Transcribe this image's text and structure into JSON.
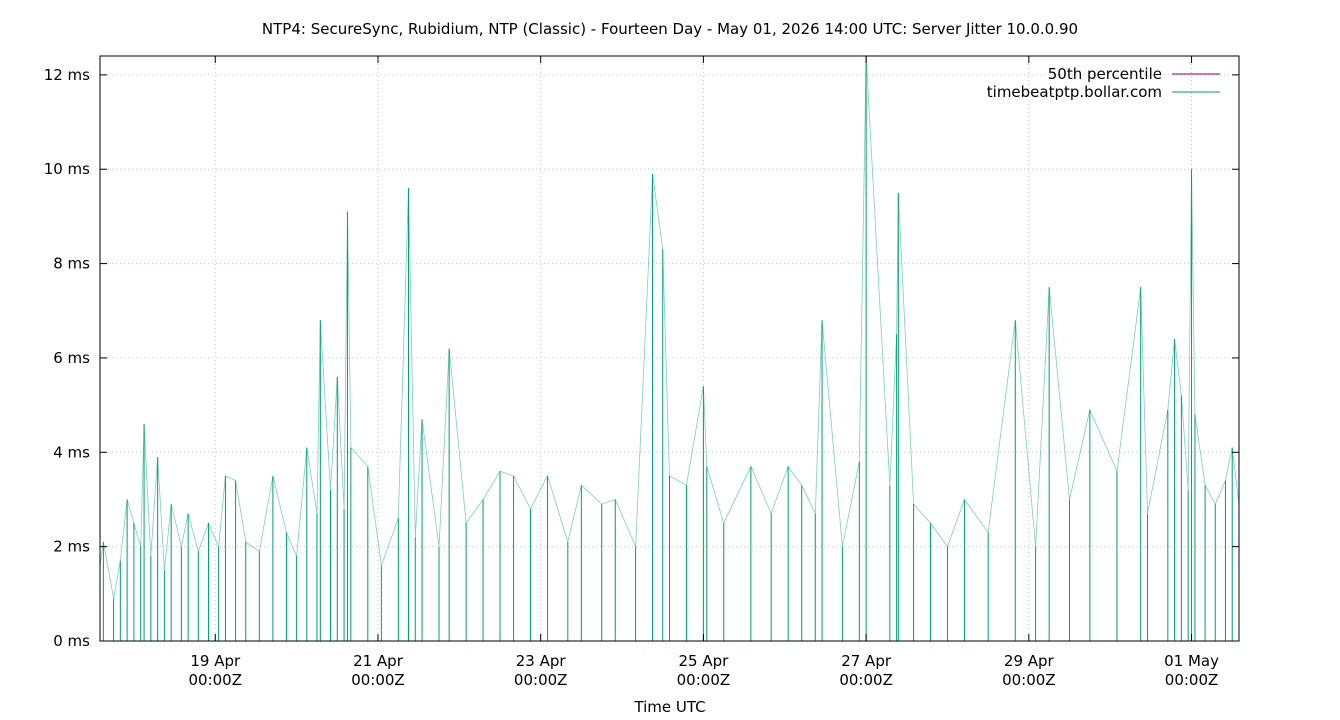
{
  "chart_data": {
    "type": "line",
    "title": "NTP4: SecureSync, Rubidium, NTP (Classic) - Fourteen Day - May 01, 2026 14:00 UTC: Server Jitter 10.0.0.90",
    "xlabel": "Time UTC",
    "ylabel": "",
    "ylim": [
      0,
      12.4
    ],
    "xlim": [
      "2026-04-17T14:00Z",
      "2026-05-01T14:00Z"
    ],
    "y_unit": "ms",
    "y_ticks": [
      {
        "value": 0,
        "label": "0 ms"
      },
      {
        "value": 2,
        "label": "2 ms"
      },
      {
        "value": 4,
        "label": "4 ms"
      },
      {
        "value": 6,
        "label": "6 ms"
      },
      {
        "value": 8,
        "label": "8 ms"
      },
      {
        "value": 10,
        "label": "10 ms"
      },
      {
        "value": 12,
        "label": "12 ms"
      }
    ],
    "x_ticks": [
      {
        "value": "2026-04-19T00:00Z",
        "label_date": "19 Apr",
        "label_time": "00:00Z"
      },
      {
        "value": "2026-04-21T00:00Z",
        "label_date": "21 Apr",
        "label_time": "00:00Z"
      },
      {
        "value": "2026-04-23T00:00Z",
        "label_date": "23 Apr",
        "label_time": "00:00Z"
      },
      {
        "value": "2026-04-25T00:00Z",
        "label_date": "25 Apr",
        "label_time": "00:00Z"
      },
      {
        "value": "2026-04-27T00:00Z",
        "label_date": "27 Apr",
        "label_time": "00:00Z"
      },
      {
        "value": "2026-04-29T00:00Z",
        "label_date": "29 Apr",
        "label_time": "00:00Z"
      },
      {
        "value": "2026-05-01T00:00Z",
        "label_date": "01 May",
        "label_time": "00:00Z"
      }
    ],
    "grid": true,
    "legend_position": "top-right",
    "series": [
      {
        "name": "50th percentile",
        "color": "#800080",
        "points": []
      },
      {
        "name": "timebeatptp.bollar.com",
        "color": "#009e73",
        "points": [
          [
            "2026-04-17T14:00Z",
            1.6
          ],
          [
            "2026-04-17T15:00Z",
            2.1
          ],
          [
            "2026-04-17T18:00Z",
            0.9
          ],
          [
            "2026-04-17T20:00Z",
            1.7
          ],
          [
            "2026-04-17T22:00Z",
            3.0
          ],
          [
            "2026-04-18T00:00Z",
            2.5
          ],
          [
            "2026-04-18T02:00Z",
            2.0
          ],
          [
            "2026-04-18T03:00Z",
            4.6
          ],
          [
            "2026-04-18T05:00Z",
            1.8
          ],
          [
            "2026-04-18T07:00Z",
            3.9
          ],
          [
            "2026-04-18T09:00Z",
            1.5
          ],
          [
            "2026-04-18T11:00Z",
            2.9
          ],
          [
            "2026-04-18T14:00Z",
            2.0
          ],
          [
            "2026-04-18T16:00Z",
            2.7
          ],
          [
            "2026-04-18T19:00Z",
            1.9
          ],
          [
            "2026-04-18T22:00Z",
            2.5
          ],
          [
            "2026-04-19T01:00Z",
            2.0
          ],
          [
            "2026-04-19T03:00Z",
            3.5
          ],
          [
            "2026-04-19T06:00Z",
            3.4
          ],
          [
            "2026-04-19T09:00Z",
            2.1
          ],
          [
            "2026-04-19T13:00Z",
            1.9
          ],
          [
            "2026-04-19T17:00Z",
            3.5
          ],
          [
            "2026-04-19T21:00Z",
            2.3
          ],
          [
            "2026-04-20T00:00Z",
            1.8
          ],
          [
            "2026-04-20T03:00Z",
            4.1
          ],
          [
            "2026-04-20T06:00Z",
            2.7
          ],
          [
            "2026-04-20T07:00Z",
            6.8
          ],
          [
            "2026-04-20T10:00Z",
            3.2
          ],
          [
            "2026-04-20T12:00Z",
            5.6
          ],
          [
            "2026-04-20T14:00Z",
            2.8
          ],
          [
            "2026-04-20T15:00Z",
            9.1
          ],
          [
            "2026-04-20T16:00Z",
            4.1
          ],
          [
            "2026-04-20T21:00Z",
            3.7
          ],
          [
            "2026-04-21T01:00Z",
            1.6
          ],
          [
            "2026-04-21T06:00Z",
            2.6
          ],
          [
            "2026-04-21T09:00Z",
            9.6
          ],
          [
            "2026-04-21T11:00Z",
            2.2
          ],
          [
            "2026-04-21T13:00Z",
            4.7
          ],
          [
            "2026-04-21T18:00Z",
            2.0
          ],
          [
            "2026-04-21T21:00Z",
            6.2
          ],
          [
            "2026-04-22T02:00Z",
            2.5
          ],
          [
            "2026-04-22T07:00Z",
            3.0
          ],
          [
            "2026-04-22T12:00Z",
            3.6
          ],
          [
            "2026-04-22T16:00Z",
            3.5
          ],
          [
            "2026-04-22T21:00Z",
            2.8
          ],
          [
            "2026-04-23T02:00Z",
            3.5
          ],
          [
            "2026-04-23T08:00Z",
            2.1
          ],
          [
            "2026-04-23T12:00Z",
            3.3
          ],
          [
            "2026-04-23T18:00Z",
            2.9
          ],
          [
            "2026-04-23T22:00Z",
            3.0
          ],
          [
            "2026-04-24T04:00Z",
            2.0
          ],
          [
            "2026-04-24T09:00Z",
            9.9
          ],
          [
            "2026-04-24T12:00Z",
            8.3
          ],
          [
            "2026-04-24T14:00Z",
            3.5
          ],
          [
            "2026-04-24T19:00Z",
            3.3
          ],
          [
            "2026-04-25T00:00Z",
            5.4
          ],
          [
            "2026-04-25T01:00Z",
            3.7
          ],
          [
            "2026-04-25T06:00Z",
            2.5
          ],
          [
            "2026-04-25T14:00Z",
            3.7
          ],
          [
            "2026-04-25T20:00Z",
            2.7
          ],
          [
            "2026-04-26T01:00Z",
            3.7
          ],
          [
            "2026-04-26T05:00Z",
            3.3
          ],
          [
            "2026-04-26T09:00Z",
            2.7
          ],
          [
            "2026-04-26T11:00Z",
            6.8
          ],
          [
            "2026-04-26T17:00Z",
            2.0
          ],
          [
            "2026-04-26T22:00Z",
            3.8
          ],
          [
            "2026-04-27T00:00Z",
            12.4
          ],
          [
            "2026-04-27T07:00Z",
            3.3
          ],
          [
            "2026-04-27T09:00Z",
            6.5
          ],
          [
            "2026-04-27T09:30Z",
            9.5
          ],
          [
            "2026-04-27T14:00Z",
            2.9
          ],
          [
            "2026-04-27T19:00Z",
            2.5
          ],
          [
            "2026-04-28T00:00Z",
            2.0
          ],
          [
            "2026-04-28T05:00Z",
            3.0
          ],
          [
            "2026-04-28T12:00Z",
            2.3
          ],
          [
            "2026-04-28T20:00Z",
            6.8
          ],
          [
            "2026-04-29T02:00Z",
            2.0
          ],
          [
            "2026-04-29T06:00Z",
            7.5
          ],
          [
            "2026-04-29T12:00Z",
            3.0
          ],
          [
            "2026-04-29T18:00Z",
            4.9
          ],
          [
            "2026-04-30T02:00Z",
            3.6
          ],
          [
            "2026-04-30T09:00Z",
            7.5
          ],
          [
            "2026-04-30T11:00Z",
            2.7
          ],
          [
            "2026-04-30T17:00Z",
            4.9
          ],
          [
            "2026-04-30T19:00Z",
            6.4
          ],
          [
            "2026-04-30T21:00Z",
            5.2
          ],
          [
            "2026-04-30T23:00Z",
            3.2
          ],
          [
            "2026-05-01T00:00Z",
            10.0
          ],
          [
            "2026-05-01T01:00Z",
            4.8
          ],
          [
            "2026-05-01T04:00Z",
            3.3
          ],
          [
            "2026-05-01T07:00Z",
            2.9
          ],
          [
            "2026-05-01T10:00Z",
            3.4
          ],
          [
            "2026-05-01T12:00Z",
            4.1
          ],
          [
            "2026-05-01T14:00Z",
            2.9
          ]
        ]
      }
    ]
  }
}
